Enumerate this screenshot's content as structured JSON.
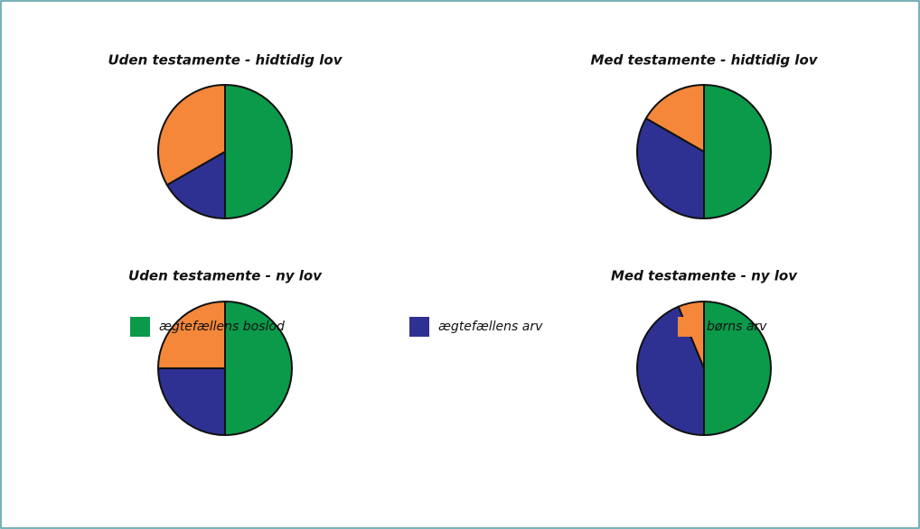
{
  "chart_data": [
    {
      "type": "pie",
      "title": "Uden testamente - hidtidig lov",
      "values": [
        50,
        16.7,
        33.3
      ]
    },
    {
      "type": "pie",
      "title": "Med testamente - hidtidig lov",
      "values": [
        50,
        33.3,
        16.7
      ]
    },
    {
      "type": "pie",
      "title": "Uden testamente - ny lov",
      "values": [
        50,
        25,
        25
      ]
    },
    {
      "type": "pie",
      "title": "Med testamente - ny lov",
      "values": [
        50,
        43.75,
        6.25
      ]
    }
  ],
  "legend": {
    "labels": [
      "ægtefællens boslod",
      "ægtefællens arv",
      "børns arv"
    ],
    "colors": [
      "#0b9a4a",
      "#2e3192",
      "#f4873a"
    ]
  }
}
